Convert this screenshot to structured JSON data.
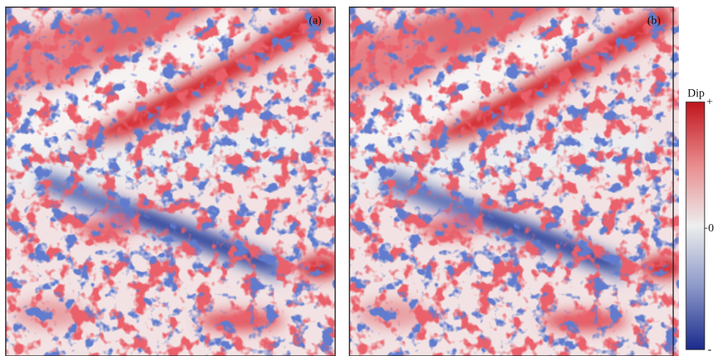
{
  "panels": [
    {
      "label": "(a)"
    },
    {
      "label": "(b)"
    }
  ],
  "colorbar": {
    "title": "Dip",
    "ticks": [
      "+",
      "0",
      "-"
    ]
  }
}
